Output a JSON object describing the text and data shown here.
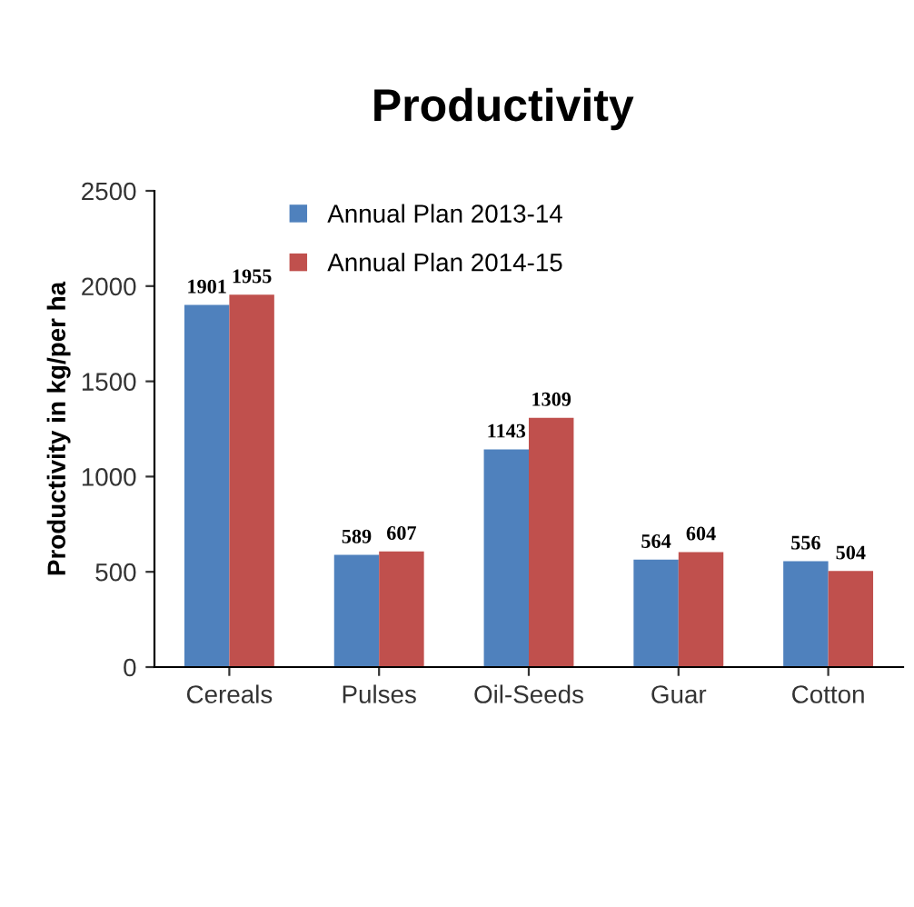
{
  "chart_data": {
    "type": "bar",
    "title": "Productivity",
    "ylabel": "Productivity in kg/per ha",
    "categories": [
      "Cereals",
      "Pulses",
      "Oil-Seeds",
      "Guar",
      "Cotton"
    ],
    "series": [
      {
        "name": "Annual Plan 2013-14",
        "color": "#4f81bd",
        "values": [
          1901,
          589,
          1143,
          564,
          556
        ]
      },
      {
        "name": "Annual Plan 2014-15",
        "color": "#c0504d",
        "values": [
          1955,
          607,
          1309,
          604,
          504
        ]
      }
    ],
    "ylim": [
      0,
      2500
    ],
    "yticks": [
      0,
      500,
      1000,
      1500,
      2000,
      2500
    ],
    "grid": false,
    "legend": "top",
    "data_labels": true
  }
}
